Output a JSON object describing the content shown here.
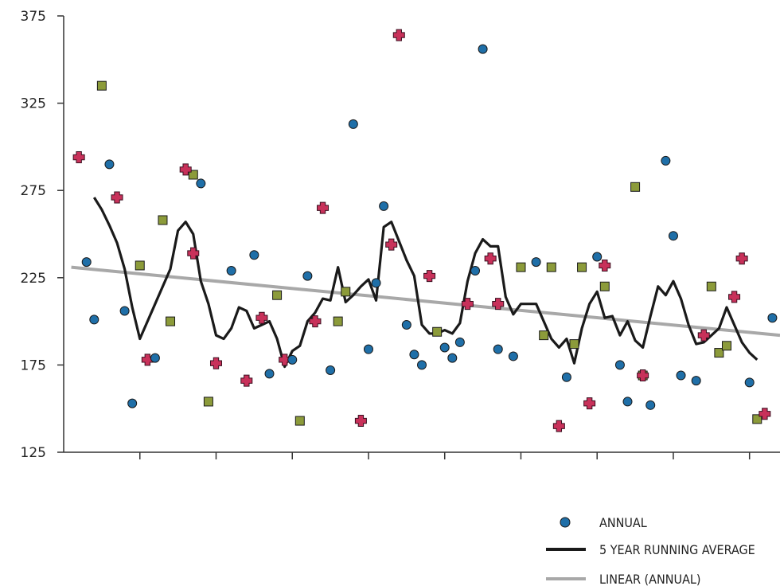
{
  "chart_data": {
    "type": "scatter",
    "title": "",
    "xlabel": "",
    "ylabel": "",
    "ylim": [
      125,
      375
    ],
    "yticks": [
      125,
      175,
      225,
      275,
      325,
      375
    ],
    "xlim": [
      0,
      94
    ],
    "x_tick_interval": 10,
    "grid": false,
    "legend_position": "bottom-right",
    "colors": {
      "annual": "#1f6fa8",
      "square_markers": "#8c9b3a",
      "cross_markers": "#c8315a",
      "running_average": "#1a1a1a",
      "linear": "#a8a8a8"
    },
    "legend": [
      {
        "key": "annual",
        "label": "ANNUAL"
      },
      {
        "key": "running_average",
        "label": "5 YEAR RUNNING AVERAGE"
      },
      {
        "key": "linear",
        "label": "LINEAR (ANNUAL)"
      }
    ],
    "series": [
      {
        "key": "annual",
        "name": "ANNUAL",
        "marker": "circle",
        "points": [
          [
            3,
            234
          ],
          [
            4,
            201
          ],
          [
            6,
            290
          ],
          [
            8,
            206
          ],
          [
            9,
            153
          ],
          [
            12,
            179
          ],
          [
            18,
            279
          ],
          [
            22,
            229
          ],
          [
            25,
            238
          ],
          [
            27,
            170
          ],
          [
            30,
            178
          ],
          [
            32,
            226
          ],
          [
            35,
            172
          ],
          [
            38,
            313
          ],
          [
            40,
            184
          ],
          [
            41,
            222
          ],
          [
            42,
            266
          ],
          [
            45,
            198
          ],
          [
            46,
            181
          ],
          [
            47,
            175
          ],
          [
            50,
            185
          ],
          [
            51,
            179
          ],
          [
            52,
            188
          ],
          [
            54,
            229
          ],
          [
            55,
            356
          ],
          [
            57,
            184
          ],
          [
            59,
            180
          ],
          [
            62,
            234
          ],
          [
            66,
            168
          ],
          [
            70,
            237
          ],
          [
            73,
            175
          ],
          [
            74,
            154
          ],
          [
            77,
            152
          ],
          [
            79,
            292
          ],
          [
            80,
            249
          ],
          [
            81,
            169
          ],
          [
            83,
            166
          ],
          [
            90,
            165
          ],
          [
            93,
            202
          ]
        ]
      },
      {
        "key": "square_markers",
        "marker": "square",
        "points": [
          [
            5,
            335
          ],
          [
            10,
            232
          ],
          [
            13,
            258
          ],
          [
            14,
            200
          ],
          [
            17,
            284
          ],
          [
            19,
            154
          ],
          [
            28,
            215
          ],
          [
            31,
            143
          ],
          [
            36,
            200
          ],
          [
            37,
            217
          ],
          [
            49,
            194
          ],
          [
            60,
            231
          ],
          [
            63,
            192
          ],
          [
            64,
            231
          ],
          [
            67,
            187
          ],
          [
            68,
            231
          ],
          [
            71,
            220
          ],
          [
            75,
            277
          ],
          [
            76,
            169
          ],
          [
            85,
            220
          ],
          [
            86,
            182
          ],
          [
            87,
            186
          ],
          [
            91,
            144
          ]
        ]
      },
      {
        "key": "cross_markers",
        "marker": "cross",
        "points": [
          [
            2,
            294
          ],
          [
            7,
            271
          ],
          [
            11,
            178
          ],
          [
            16,
            287
          ],
          [
            17,
            239
          ],
          [
            20,
            176
          ],
          [
            24,
            166
          ],
          [
            26,
            202
          ],
          [
            29,
            178
          ],
          [
            33,
            200
          ],
          [
            34,
            265
          ],
          [
            39,
            143
          ],
          [
            43,
            244
          ],
          [
            44,
            364
          ],
          [
            48,
            226
          ],
          [
            53,
            210
          ],
          [
            56,
            236
          ],
          [
            57,
            210
          ],
          [
            65,
            140
          ],
          [
            69,
            153
          ],
          [
            71,
            232
          ],
          [
            76,
            169
          ],
          [
            84,
            192
          ],
          [
            88,
            214
          ],
          [
            89,
            236
          ],
          [
            92,
            147
          ]
        ]
      },
      {
        "key": "running_average",
        "name": "5 YEAR RUNNING AVERAGE",
        "type": "line",
        "points": [
          [
            4,
            271
          ],
          [
            5,
            264
          ],
          [
            6,
            255
          ],
          [
            7,
            245
          ],
          [
            8,
            230
          ],
          [
            9,
            208
          ],
          [
            10,
            190
          ],
          [
            11,
            200
          ],
          [
            12,
            210
          ],
          [
            13,
            220
          ],
          [
            14,
            230
          ],
          [
            15,
            252
          ],
          [
            16,
            257
          ],
          [
            17,
            250
          ],
          [
            18,
            223
          ],
          [
            19,
            210
          ],
          [
            20,
            192
          ],
          [
            21,
            190
          ],
          [
            22,
            196
          ],
          [
            23,
            208
          ],
          [
            24,
            206
          ],
          [
            25,
            196
          ],
          [
            26,
            198
          ],
          [
            27,
            200
          ],
          [
            28,
            190
          ],
          [
            29,
            174
          ],
          [
            30,
            183
          ],
          [
            31,
            186
          ],
          [
            32,
            200
          ],
          [
            33,
            205
          ],
          [
            34,
            213
          ],
          [
            35,
            212
          ],
          [
            36,
            231
          ],
          [
            37,
            211
          ],
          [
            38,
            215
          ],
          [
            39,
            220
          ],
          [
            40,
            224
          ],
          [
            41,
            212
          ],
          [
            42,
            254
          ],
          [
            43,
            257
          ],
          [
            44,
            246
          ],
          [
            45,
            235
          ],
          [
            46,
            226
          ],
          [
            47,
            198
          ],
          [
            48,
            193
          ],
          [
            49,
            193
          ],
          [
            50,
            195
          ],
          [
            51,
            193
          ],
          [
            52,
            199
          ],
          [
            53,
            223
          ],
          [
            54,
            239
          ],
          [
            55,
            247
          ],
          [
            56,
            243
          ],
          [
            57,
            243
          ],
          [
            58,
            214
          ],
          [
            59,
            204
          ],
          [
            60,
            210
          ],
          [
            61,
            210
          ],
          [
            62,
            210
          ],
          [
            63,
            200
          ],
          [
            64,
            190
          ],
          [
            65,
            185
          ],
          [
            66,
            190
          ],
          [
            67,
            176
          ],
          [
            68,
            196
          ],
          [
            69,
            210
          ],
          [
            70,
            217
          ],
          [
            71,
            202
          ],
          [
            72,
            203
          ],
          [
            73,
            192
          ],
          [
            74,
            200
          ],
          [
            75,
            189
          ],
          [
            76,
            185
          ],
          [
            77,
            203
          ],
          [
            78,
            220
          ],
          [
            79,
            215
          ],
          [
            80,
            223
          ],
          [
            81,
            213
          ],
          [
            82,
            198
          ],
          [
            83,
            187
          ],
          [
            84,
            188
          ],
          [
            85,
            192
          ],
          [
            86,
            196
          ],
          [
            87,
            208
          ],
          [
            88,
            198
          ],
          [
            89,
            188
          ],
          [
            90,
            182
          ],
          [
            91,
            178
          ]
        ]
      },
      {
        "key": "linear",
        "name": "LINEAR (ANNUAL)",
        "type": "line",
        "points": [
          [
            1,
            231
          ],
          [
            94,
            192
          ]
        ]
      }
    ]
  }
}
